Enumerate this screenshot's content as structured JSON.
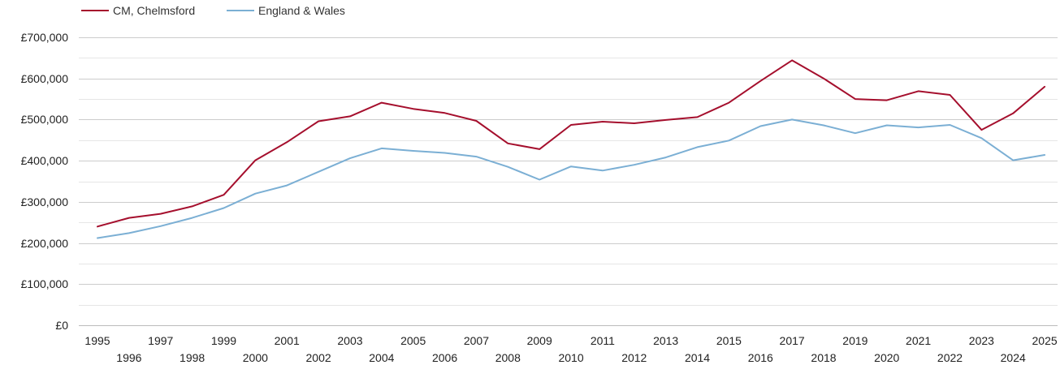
{
  "chart_data": {
    "type": "line",
    "title": "",
    "xlabel": "",
    "ylabel": "",
    "ylim": [
      0,
      700000
    ],
    "y_ticks": [
      0,
      100000,
      200000,
      300000,
      400000,
      500000,
      600000,
      700000
    ],
    "y_tick_labels": [
      "£0",
      "£100,000",
      "£200,000",
      "£300,000",
      "£400,000",
      "£500,000",
      "£600,000",
      "£700,000"
    ],
    "minor_grid": true,
    "legend_position": "top-left",
    "x": [
      1995,
      1996,
      1997,
      1998,
      1999,
      2000,
      2001,
      2002,
      2003,
      2004,
      2005,
      2006,
      2007,
      2008,
      2009,
      2010,
      2011,
      2012,
      2013,
      2014,
      2015,
      2016,
      2017,
      2018,
      2019,
      2020,
      2021,
      2022,
      2023,
      2024,
      2025
    ],
    "series": [
      {
        "name": "CM, Chelmsford",
        "color": "#a50f2d",
        "values": [
          240000,
          261000,
          271000,
          289000,
          317000,
          401000,
          445000,
          496000,
          508000,
          541000,
          526000,
          516000,
          497000,
          442000,
          428000,
          487000,
          495000,
          491000,
          499000,
          506000,
          541000,
          594000,
          644000,
          600000,
          550000,
          547000,
          569000,
          560000,
          475000,
          515000,
          580000
        ]
      },
      {
        "name": "England & Wales",
        "color": "#7bafd4",
        "values": [
          212000,
          224000,
          241000,
          261000,
          285000,
          320000,
          340000,
          373000,
          406000,
          430000,
          424000,
          419000,
          410000,
          385000,
          354000,
          386000,
          376000,
          390000,
          408000,
          433000,
          449000,
          484000,
          500000,
          486000,
          467000,
          486000,
          481000,
          487000,
          455000,
          401000,
          414000
        ]
      }
    ]
  }
}
